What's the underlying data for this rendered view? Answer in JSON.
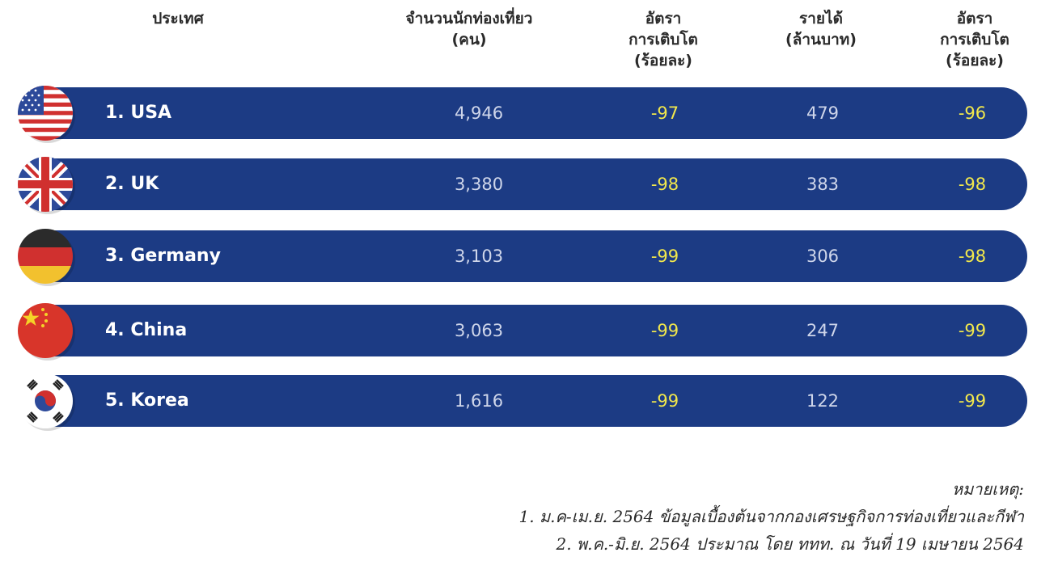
{
  "headers": {
    "country": "ประเทศ",
    "tourists": "จำนวนนักท่องเที่ยว\n(คน)",
    "tourist_growth": "อัตรา\nการเติบโต\n(ร้อยละ)",
    "revenue": "รายได้\n(ล้านบาท)",
    "revenue_growth": "อัตรา\nการเติบโต\n(ร้อยละ)"
  },
  "rows": [
    {
      "name": "1. USA",
      "tourists": "4,946",
      "tourist_growth": "-97",
      "revenue": "479",
      "revenue_growth": "-96",
      "flag_icon": "usa-flag-icon"
    },
    {
      "name": "2. UK",
      "tourists": "3,380",
      "tourist_growth": "-98",
      "revenue": "383",
      "revenue_growth": "-98",
      "flag_icon": "uk-flag-icon"
    },
    {
      "name": "3. Germany",
      "tourists": "3,103",
      "tourist_growth": "-99",
      "revenue": "306",
      "revenue_growth": "-98",
      "flag_icon": "germany-flag-icon"
    },
    {
      "name": "4. China",
      "tourists": "3,063",
      "tourist_growth": "-99",
      "revenue": "247",
      "revenue_growth": "-99",
      "flag_icon": "china-flag-icon"
    },
    {
      "name": "5. Korea",
      "tourists": "1,616",
      "tourist_growth": "-99",
      "revenue": "122",
      "revenue_growth": "-99",
      "flag_icon": "korea-flag-icon"
    }
  ],
  "notes": {
    "title": "หมายเหตุ:",
    "line1": "1. ม.ค-เม.ย. 2564 ข้อมูลเบื้องต้นจากกองเศรษฐกิจการท่องเที่ยวและกีฬา",
    "line2": "2. พ.ค.-มิ.ย. 2564 ประมาณ โดย ททท. ณ วันที่ 19 เมษายน 2564"
  },
  "colors": {
    "bar": "#1c3b84",
    "growth_text": "#f2e84c",
    "value_text": "#cfd6ea",
    "name_text": "#ffffff"
  }
}
